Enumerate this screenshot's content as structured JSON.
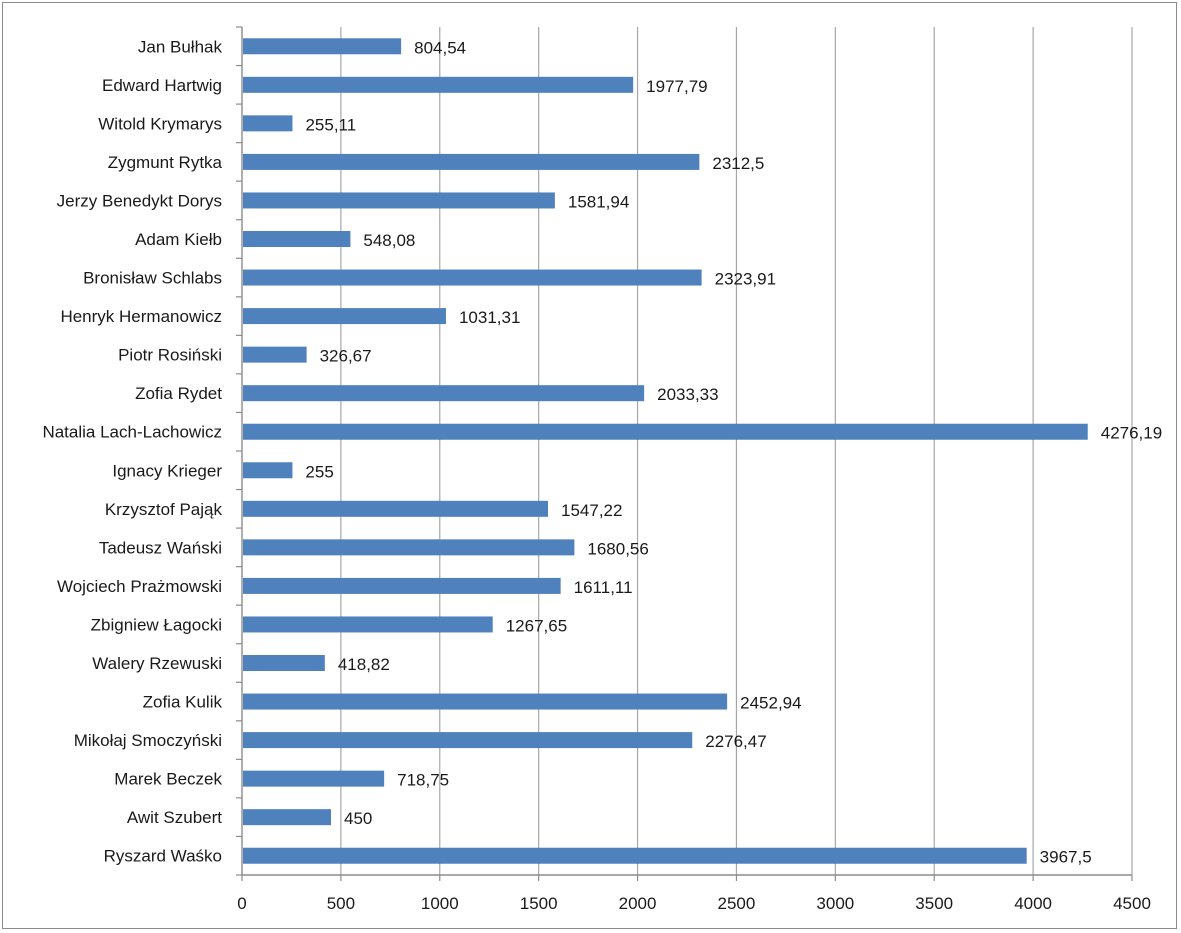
{
  "chart_data": {
    "type": "bar",
    "orientation": "horizontal",
    "title": "",
    "xlabel": "",
    "ylabel": "",
    "xlim": [
      0,
      4500
    ],
    "x_ticks": [
      0,
      500,
      1000,
      1500,
      2000,
      2500,
      3000,
      3500,
      4000,
      4500
    ],
    "grid": "vertical-major",
    "legend": "none",
    "bar_color": "#4f81bd",
    "categories": [
      "Jan Bułhak",
      "Edward Hartwig",
      "Witold Krymarys",
      "Zygmunt Rytka",
      "Jerzy Benedykt Dorys",
      "Adam Kiełb",
      "Bronisław Schlabs",
      "Henryk Hermanowicz",
      "Piotr Rosiński",
      "Zofia Rydet",
      "Natalia Lach-Lachowicz",
      "Ignacy Krieger",
      "Krzysztof Pająk",
      "Tadeusz Wański",
      "Wojciech Prażmowski",
      "Zbigniew Łagocki",
      "Walery Rzewuski",
      "Zofia Kulik",
      "Mikołaj Smoczyński",
      "Marek Beczek",
      "Awit Szubert",
      "Ryszard Waśko"
    ],
    "values": [
      804.54,
      1977.79,
      255.11,
      2312.5,
      1581.94,
      548.08,
      2323.91,
      1031.31,
      326.67,
      2033.33,
      4276.19,
      255,
      1547.22,
      1680.56,
      1611.11,
      1267.65,
      418.82,
      2452.94,
      2276.47,
      718.75,
      450,
      3967.5
    ],
    "value_labels": [
      "804,54",
      "1977,79",
      "255,11",
      "2312,5",
      "1581,94",
      "548,08",
      "2323,91",
      "1031,31",
      "326,67",
      "2033,33",
      "4276,19",
      "255",
      "1547,22",
      "1680,56",
      "1611,11",
      "1267,65",
      "418,82",
      "2452,94",
      "2276,47",
      "718,75",
      "450",
      "3967,5"
    ]
  }
}
